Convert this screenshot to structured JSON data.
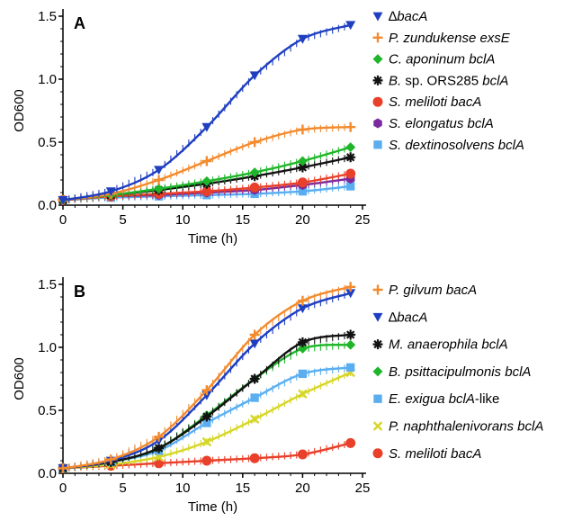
{
  "chart_data": [
    {
      "type": "line",
      "panel_label": "A",
      "xlabel": "Time (h)",
      "ylabel": "OD600",
      "xlim": [
        0,
        25
      ],
      "ylim": [
        0,
        1.5
      ],
      "x_ticks": [
        "0",
        "5",
        "10",
        "15",
        "20",
        "25"
      ],
      "y_ticks": [
        "0.0",
        "0.5",
        "1.0",
        "1.5"
      ],
      "legend_position": "right",
      "series": [
        {
          "legend": [
            {
              "t": "∆",
              "i": false
            },
            {
              "t": "bacA",
              "i": true
            }
          ],
          "color": "#1f3fbf",
          "marker": "triangle-down",
          "x": [
            0,
            4,
            8,
            12,
            16,
            20,
            24
          ],
          "y": [
            0.04,
            0.11,
            0.28,
            0.62,
            1.03,
            1.32,
            1.43
          ]
        },
        {
          "legend": [
            {
              "t": "P. zundukense exsE",
              "i": true
            }
          ],
          "color": "#f28a2e",
          "marker": "plus",
          "x": [
            0,
            4,
            8,
            12,
            16,
            20,
            24
          ],
          "y": [
            0.04,
            0.09,
            0.2,
            0.35,
            0.5,
            0.6,
            0.62
          ]
        },
        {
          "legend": [
            {
              "t": "C. aponinum bclA",
              "i": true
            }
          ],
          "color": "#1fb52a",
          "marker": "diamond",
          "x": [
            0,
            4,
            8,
            12,
            16,
            20,
            24
          ],
          "y": [
            0.04,
            0.08,
            0.13,
            0.19,
            0.26,
            0.35,
            0.46
          ]
        },
        {
          "legend": [
            {
              "t": "B.",
              "i": true
            },
            {
              "t": " sp. ORS285 ",
              "i": false
            },
            {
              "t": "bclA",
              "i": true
            }
          ],
          "color": "#111111",
          "marker": "star",
          "x": [
            0,
            4,
            8,
            12,
            16,
            20,
            24
          ],
          "y": [
            0.04,
            0.08,
            0.12,
            0.17,
            0.23,
            0.3,
            0.38
          ]
        },
        {
          "legend": [
            {
              "t": "S. meliloti bacA",
              "i": true
            }
          ],
          "color": "#e8402a",
          "marker": "circle",
          "x": [
            0,
            4,
            8,
            12,
            16,
            20,
            24
          ],
          "y": [
            0.04,
            0.07,
            0.09,
            0.11,
            0.14,
            0.18,
            0.25
          ]
        },
        {
          "legend": [
            {
              "t": "S. elongatus bclA",
              "i": true
            }
          ],
          "color": "#7a2a9e",
          "marker": "hexagon",
          "x": [
            0,
            4,
            8,
            12,
            16,
            20,
            24
          ],
          "y": [
            0.04,
            0.07,
            0.08,
            0.1,
            0.12,
            0.16,
            0.21
          ]
        },
        {
          "legend": [
            {
              "t": "S. dextinosolvens bclA",
              "i": true
            }
          ],
          "color": "#5aaef0",
          "marker": "square",
          "x": [
            0,
            4,
            8,
            12,
            16,
            20,
            24
          ],
          "y": [
            0.04,
            0.06,
            0.07,
            0.08,
            0.09,
            0.11,
            0.15
          ]
        }
      ]
    },
    {
      "type": "line",
      "panel_label": "B",
      "xlabel": "Time (h)",
      "ylabel": "OD600",
      "xlim": [
        0,
        25
      ],
      "ylim": [
        0,
        1.5
      ],
      "x_ticks": [
        "0",
        "5",
        "10",
        "15",
        "20",
        "25"
      ],
      "y_ticks": [
        "0.0",
        "0.5",
        "1.0",
        "1.5"
      ],
      "legend_position": "right",
      "series": [
        {
          "legend": [
            {
              "t": "P. gilvum bacA",
              "i": true
            }
          ],
          "color": "#f28a2e",
          "marker": "plus",
          "x": [
            0,
            4,
            8,
            12,
            16,
            20,
            24
          ],
          "y": [
            0.04,
            0.11,
            0.29,
            0.66,
            1.1,
            1.37,
            1.48
          ]
        },
        {
          "legend": [
            {
              "t": "∆",
              "i": false
            },
            {
              "t": "bacA",
              "i": true
            }
          ],
          "color": "#1f3fbf",
          "marker": "triangle-down",
          "x": [
            0,
            4,
            8,
            12,
            16,
            20,
            24
          ],
          "y": [
            0.04,
            0.1,
            0.26,
            0.62,
            1.03,
            1.31,
            1.43
          ]
        },
        {
          "legend": [
            {
              "t": "M. anaerophila bclA",
              "i": true
            }
          ],
          "color": "#111111",
          "marker": "star",
          "x": [
            0,
            4,
            8,
            12,
            16,
            20,
            24
          ],
          "y": [
            0.04,
            0.09,
            0.2,
            0.45,
            0.75,
            1.04,
            1.1
          ]
        },
        {
          "legend": [
            {
              "t": "B. psittacipulmonis bclA",
              "i": true
            }
          ],
          "color": "#1fb52a",
          "marker": "diamond",
          "x": [
            0,
            4,
            8,
            12,
            16,
            20,
            24
          ],
          "y": [
            0.04,
            0.09,
            0.2,
            0.46,
            0.75,
            0.99,
            1.02
          ]
        },
        {
          "legend": [
            {
              "t": "E. exigua bclA",
              "i": true
            },
            {
              "t": "-like",
              "i": false
            }
          ],
          "color": "#5aaef0",
          "marker": "square",
          "x": [
            0,
            4,
            8,
            12,
            16,
            20,
            24
          ],
          "y": [
            0.04,
            0.09,
            0.18,
            0.4,
            0.6,
            0.79,
            0.84
          ]
        },
        {
          "legend": [
            {
              "t": "P. naphthalenivorans bclA",
              "i": true
            }
          ],
          "color": "#d6d62a",
          "marker": "cross",
          "x": [
            0,
            4,
            8,
            12,
            16,
            20,
            24
          ],
          "y": [
            0.04,
            0.07,
            0.13,
            0.25,
            0.43,
            0.63,
            0.8
          ]
        },
        {
          "legend": [
            {
              "t": "S. meliloti bacA",
              "i": true
            }
          ],
          "color": "#e8402a",
          "marker": "circle",
          "x": [
            0,
            4,
            8,
            12,
            16,
            20,
            24
          ],
          "y": [
            0.04,
            0.06,
            0.08,
            0.1,
            0.12,
            0.15,
            0.24
          ]
        }
      ]
    }
  ]
}
